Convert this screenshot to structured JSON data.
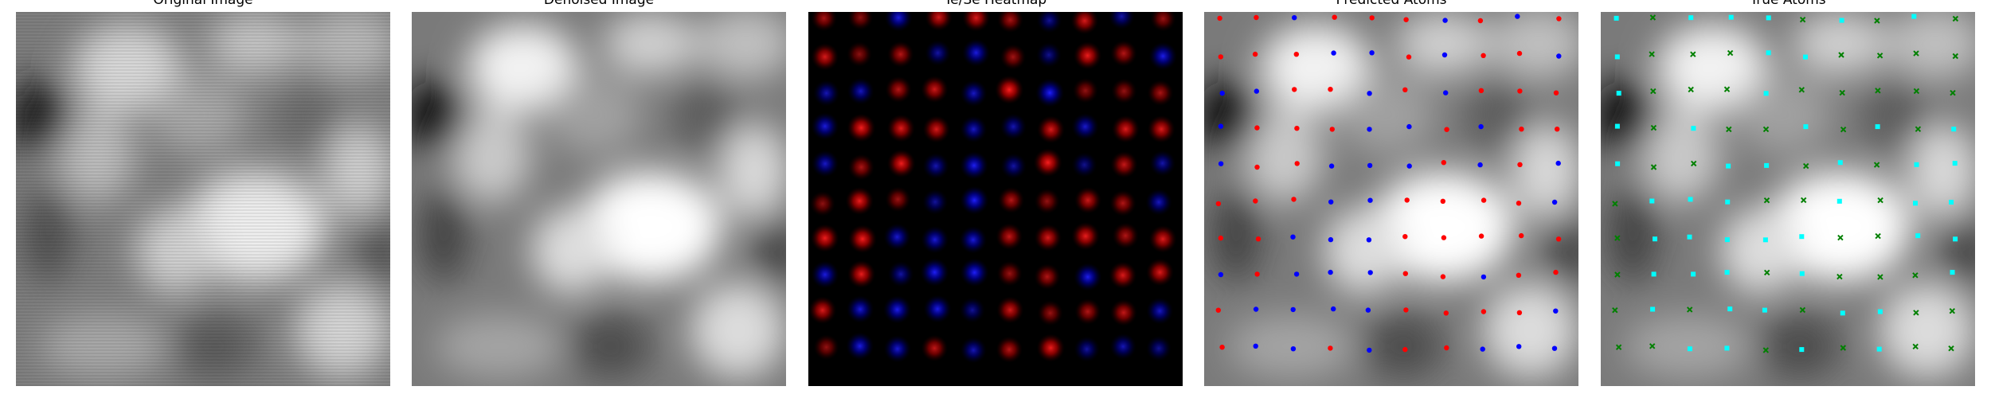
{
  "panels": [
    {
      "title": "Original Image"
    },
    {
      "title": "Denoised Image"
    },
    {
      "title": "Te/Se Heatmap"
    },
    {
      "title": "Predicted Atoms"
    },
    {
      "title": "True Atoms"
    }
  ],
  "colors": {
    "predicted_te": "#ff0000",
    "predicted_se": "#0000ff",
    "true_te": "#00ffff",
    "true_se": "#008000",
    "heatmap_background": "#000000"
  },
  "lattice": {
    "rows": 10,
    "cols": 10
  },
  "predicted_pattern": [
    "rrbrrrbrbr",
    "rrrbbrbrrb",
    "bbrrbrbrrr",
    "brrrbbrbrr",
    "brrbbbrbrb",
    "rrrbbrrrrb",
    "rrbbbrrrrr",
    "brbbbrrbrr",
    "rbbbbrrrrb",
    "rbbrbrrbbb"
  ],
  "true_pattern": [
    "cgcccgcgcg",
    "cgggccgggg",
    "cgggcggggg",
    "cgcggcgcgc",
    "cggccgcgcc",
    "gcccggcgcc",
    "gcccccggcc",
    "gcccgcgggc",
    "gcgccgccgg",
    "ggccgcgcgg"
  ]
}
